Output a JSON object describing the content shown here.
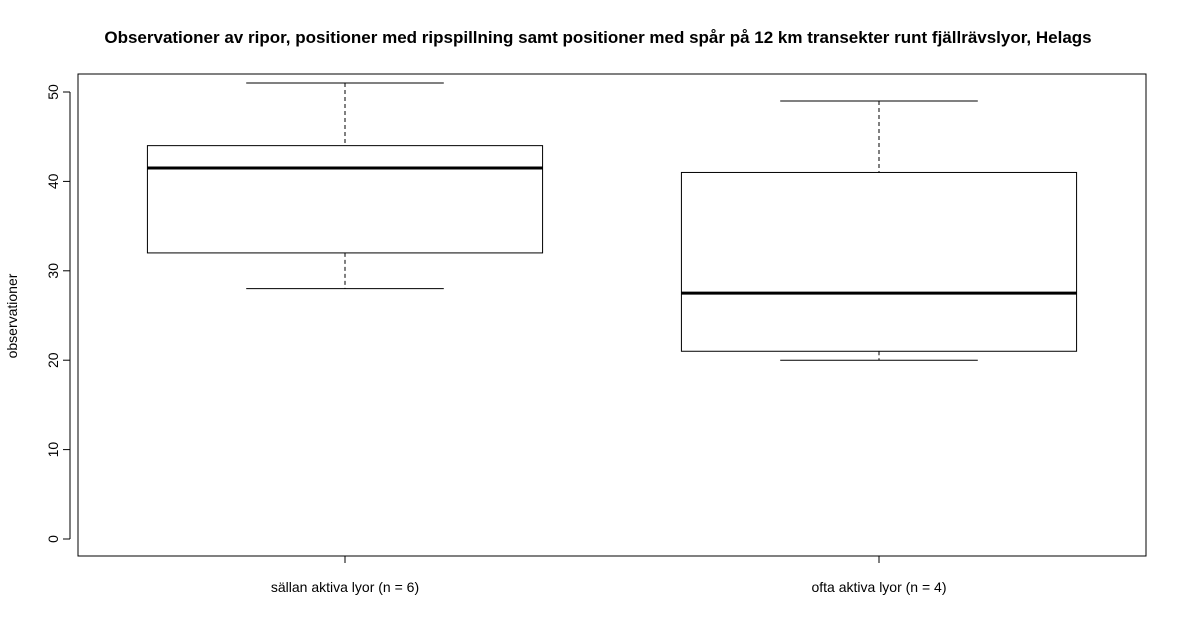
{
  "chart_data": {
    "type": "boxplot",
    "title": "Observationer av ripor, positioner med ripspillning samt positioner med spår på 12 km transekter runt fjällrävslyor, Helags",
    "xlabel": "",
    "ylabel": "observationer",
    "ylim": [
      0,
      52
    ],
    "yticks": [
      0,
      10,
      20,
      30,
      40,
      50
    ],
    "yticks_labels": [
      "0",
      "10",
      "20",
      "30",
      "40",
      "50"
    ],
    "grid": false,
    "categories": [
      "sällan aktiva lyor (n = 6)",
      "ofta aktiva lyor (n = 4)"
    ],
    "boxes": [
      {
        "min": 28,
        "q1": 32,
        "median": 41.5,
        "q3": 44,
        "max": 51
      },
      {
        "min": 20,
        "q1": 21,
        "median": 27.5,
        "q3": 41,
        "max": 49
      }
    ]
  }
}
